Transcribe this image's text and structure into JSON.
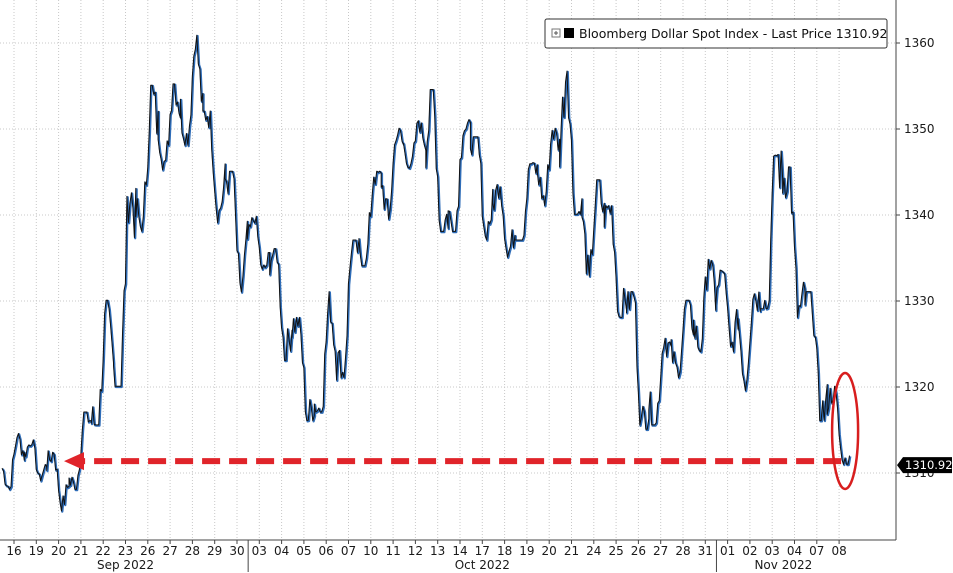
{
  "chart_data": {
    "type": "line",
    "legend": {
      "label": "Bloomberg Dollar Spot Index - Last Price 1310.92",
      "placement": "top-right",
      "box_color": "#000000"
    },
    "ylim": [
      1303,
      1363
    ],
    "y_ticks": [
      1310,
      1320,
      1330,
      1340,
      1350,
      1360
    ],
    "y_tick_labels": [
      "1310",
      "1320",
      "1330",
      "1340",
      "1350",
      "1360"
    ],
    "last_value": 1310.92,
    "last_value_label": "1310.92",
    "days": [
      "16",
      "19",
      "20",
      "21",
      "22",
      "23",
      "26",
      "27",
      "28",
      "29",
      "30",
      "03",
      "04",
      "05",
      "06",
      "07",
      "10",
      "11",
      "12",
      "13",
      "14",
      "17",
      "18",
      "19",
      "20",
      "21",
      "24",
      "25",
      "26",
      "27",
      "28",
      "31",
      "01",
      "02",
      "03",
      "04",
      "07",
      "08"
    ],
    "months": [
      {
        "label": "Sep 2022",
        "start_index": 0
      },
      {
        "label": "Oct 2022",
        "start_index": 11
      },
      {
        "label": "Nov 2022",
        "start_index": 32
      }
    ],
    "daily": [
      {
        "open": 1310.5,
        "high": 1314.5,
        "low": 1308.0,
        "close": 1312.0
      },
      {
        "open": 1312.0,
        "high": 1314.0,
        "low": 1309.0,
        "close": 1311.0
      },
      {
        "open": 1311.0,
        "high": 1312.5,
        "low": 1305.5,
        "close": 1309.0
      },
      {
        "open": 1309.0,
        "high": 1317.0,
        "low": 1308.0,
        "close": 1316.0
      },
      {
        "open": 1316.0,
        "high": 1330.0,
        "low": 1315.5,
        "close": 1322.0
      },
      {
        "open": 1322.0,
        "high": 1343.0,
        "low": 1320.0,
        "close": 1340.0
      },
      {
        "open": 1340.0,
        "high": 1355.0,
        "low": 1338.0,
        "close": 1350.0
      },
      {
        "open": 1350.0,
        "high": 1356.0,
        "low": 1345.0,
        "close": 1352.0
      },
      {
        "open": 1352.0,
        "high": 1361.5,
        "low": 1348.0,
        "close": 1352.0
      },
      {
        "open": 1352.0,
        "high": 1352.0,
        "low": 1339.0,
        "close": 1344.0
      },
      {
        "open": 1344.0,
        "high": 1345.0,
        "low": 1330.0,
        "close": 1337.0
      },
      {
        "open": 1337.0,
        "high": 1340.0,
        "low": 1333.0,
        "close": 1335.0
      },
      {
        "open": 1335.0,
        "high": 1336.0,
        "low": 1323.0,
        "close": 1327.0
      },
      {
        "open": 1327.0,
        "high": 1328.0,
        "low": 1316.0,
        "close": 1318.0
      },
      {
        "open": 1318.0,
        "high": 1331.0,
        "low": 1317.0,
        "close": 1323.0
      },
      {
        "open": 1323.0,
        "high": 1337.0,
        "low": 1321.0,
        "close": 1336.0
      },
      {
        "open": 1336.0,
        "high": 1345.0,
        "low": 1334.0,
        "close": 1344.0
      },
      {
        "open": 1344.0,
        "high": 1350.0,
        "low": 1339.0,
        "close": 1348.0
      },
      {
        "open": 1348.0,
        "high": 1351.0,
        "low": 1345.0,
        "close": 1348.0
      },
      {
        "open": 1348.0,
        "high": 1354.5,
        "low": 1338.0,
        "close": 1340.0
      },
      {
        "open": 1340.0,
        "high": 1351.0,
        "low": 1338.0,
        "close": 1349.0
      },
      {
        "open": 1349.0,
        "high": 1349.0,
        "low": 1337.0,
        "close": 1341.0
      },
      {
        "open": 1341.0,
        "high": 1344.0,
        "low": 1335.0,
        "close": 1338.0
      },
      {
        "open": 1338.0,
        "high": 1346.0,
        "low": 1337.0,
        "close": 1345.0
      },
      {
        "open": 1345.0,
        "high": 1350.0,
        "low": 1341.0,
        "close": 1348.0
      },
      {
        "open": 1348.0,
        "high": 1358.0,
        "low": 1340.0,
        "close": 1340.0
      },
      {
        "open": 1340.0,
        "high": 1344.0,
        "low": 1331.5,
        "close": 1340.0
      },
      {
        "open": 1340.0,
        "high": 1341.0,
        "low": 1328.0,
        "close": 1330.0
      },
      {
        "open": 1330.0,
        "high": 1331.0,
        "low": 1315.0,
        "close": 1318.0
      },
      {
        "open": 1318.0,
        "high": 1326.0,
        "low": 1315.5,
        "close": 1324.0
      },
      {
        "open": 1324.0,
        "high": 1330.0,
        "low": 1321.0,
        "close": 1327.0
      },
      {
        "open": 1327.0,
        "high": 1335.5,
        "low": 1324.0,
        "close": 1330.0
      },
      {
        "open": 1330.0,
        "high": 1334.0,
        "low": 1324.0,
        "close": 1328.0
      },
      {
        "open": 1328.0,
        "high": 1331.0,
        "low": 1319.5,
        "close": 1330.0
      },
      {
        "open": 1330.0,
        "high": 1347.5,
        "low": 1329.0,
        "close": 1344.0
      },
      {
        "open": 1344.0,
        "high": 1345.5,
        "low": 1328.0,
        "close": 1330.0
      },
      {
        "open": 1330.0,
        "high": 1331.0,
        "low": 1316.0,
        "close": 1318.0
      },
      {
        "open": 1318.0,
        "high": 1320.0,
        "low": 1310.92,
        "close": 1310.92
      }
    ]
  }
}
